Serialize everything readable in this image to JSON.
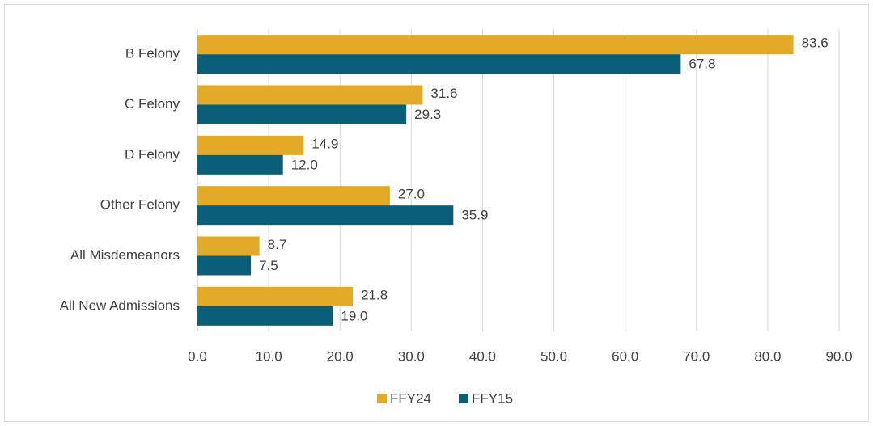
{
  "chart_data": {
    "type": "bar",
    "orientation": "horizontal",
    "categories": [
      "B Felony",
      "C Felony",
      "D Felony",
      "Other Felony",
      "All Misdemeanors",
      "All New Admissions"
    ],
    "series": [
      {
        "name": "FFY24",
        "color": "#E3A928",
        "values": [
          83.6,
          31.6,
          14.9,
          27.0,
          8.7,
          21.8
        ],
        "value_labels": [
          "83.6",
          "31.6",
          "14.9",
          "27.0",
          "8.7",
          "21.8"
        ]
      },
      {
        "name": "FFY15",
        "color": "#0B5E78",
        "values": [
          67.8,
          29.3,
          12.0,
          35.9,
          7.5,
          19.0
        ],
        "value_labels": [
          "67.8",
          "29.3",
          "12.0",
          "35.9",
          "7.5",
          "19.0"
        ]
      }
    ],
    "xlim": [
      0,
      90
    ],
    "xticks": [
      {
        "value": 0,
        "label": "0.0"
      },
      {
        "value": 10,
        "label": "10.0"
      },
      {
        "value": 20,
        "label": "20.0"
      },
      {
        "value": 30,
        "label": "30.0"
      },
      {
        "value": 40,
        "label": "40.0"
      },
      {
        "value": 50,
        "label": "50.0"
      },
      {
        "value": 60,
        "label": "60.0"
      },
      {
        "value": 70,
        "label": "70.0"
      },
      {
        "value": 80,
        "label": "80.0"
      },
      {
        "value": 90,
        "label": "90.0"
      }
    ],
    "grid": true,
    "legend": "bottom"
  }
}
